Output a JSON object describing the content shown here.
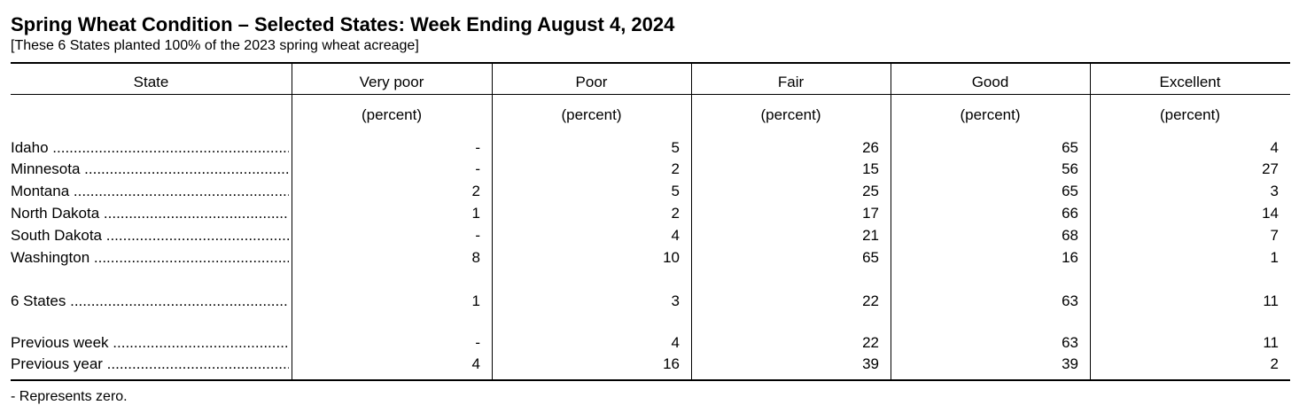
{
  "header": {
    "title": "Spring Wheat Condition – Selected States: Week Ending August 4, 2024",
    "subtitle": "[These 6 States planted 100% of the 2023 spring wheat acreage]"
  },
  "table": {
    "columns": [
      "State",
      "Very poor",
      "Poor",
      "Fair",
      "Good",
      "Excellent"
    ],
    "units": [
      "(percent)",
      "(percent)",
      "(percent)",
      "(percent)",
      "(percent)"
    ],
    "rows": [
      [
        "Idaho",
        "-",
        5,
        26,
        65,
        4
      ],
      [
        "Minnesota",
        "-",
        2,
        15,
        56,
        27
      ],
      [
        "Montana",
        2,
        5,
        25,
        65,
        3
      ],
      [
        "North Dakota",
        1,
        2,
        17,
        66,
        14
      ],
      [
        "South Dakota",
        "-",
        4,
        21,
        68,
        7
      ],
      [
        "Washington",
        8,
        10,
        65,
        16,
        1
      ]
    ],
    "total": [
      [
        "6 States",
        1,
        3,
        22,
        63,
        11
      ]
    ],
    "comparison": [
      [
        "Previous week",
        "-",
        4,
        22,
        63,
        11
      ],
      [
        "Previous year",
        4,
        16,
        39,
        39,
        2
      ]
    ]
  },
  "footnote": "- Represents zero."
}
